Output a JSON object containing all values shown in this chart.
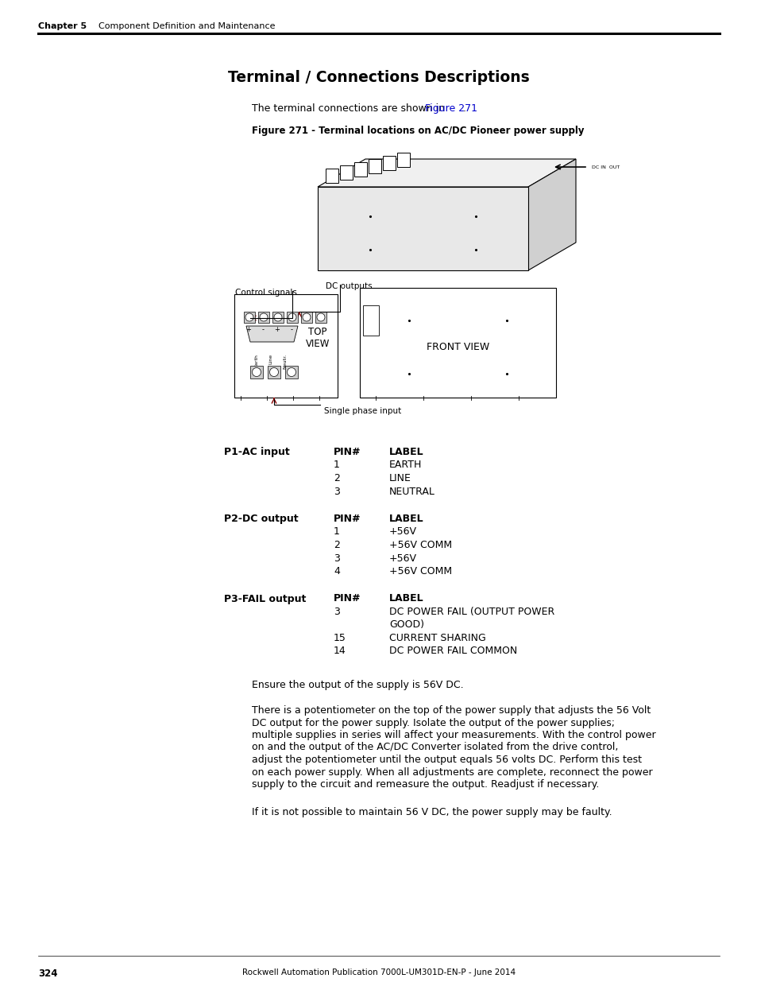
{
  "page_header_chapter": "Chapter 5",
  "page_header_title": "    Component Definition and Maintenance",
  "main_title": "Terminal / Connections Descriptions",
  "intro_link": "Figure 271",
  "figure_caption": "Figure 271 - Terminal locations on AC/DC Pioneer power supply",
  "label_control_signals": "Control signals",
  "label_dc_outputs": "DC outputs",
  "label_top_view": "TOP\nVIEW",
  "label_front_view": "FRONT VIEW",
  "label_single_phase": "Single phase input",
  "sections": [
    {
      "connector": "P1-AC input",
      "pin_label_header": "PIN#",
      "label_header": "LABEL",
      "rows": [
        {
          "pin": "1",
          "label": "EARTH",
          "cont": false
        },
        {
          "pin": "2",
          "label": "LINE",
          "cont": false
        },
        {
          "pin": "3",
          "label": "NEUTRAL",
          "cont": false
        }
      ]
    },
    {
      "connector": "P2-DC output",
      "pin_label_header": "PIN#",
      "label_header": "LABEL",
      "rows": [
        {
          "pin": "1",
          "label": "+56V",
          "cont": false
        },
        {
          "pin": "2",
          "label": "+56V COMM",
          "cont": false
        },
        {
          "pin": "3",
          "label": "+56V",
          "cont": false
        },
        {
          "pin": "4",
          "label": "+56V COMM",
          "cont": false
        }
      ]
    },
    {
      "connector": "P3-FAIL output",
      "pin_label_header": "PIN#",
      "label_header": "LABEL",
      "rows": [
        {
          "pin": "3",
          "label": "DC POWER FAIL (OUTPUT POWER",
          "cont": false
        },
        {
          "pin": "",
          "label": "GOOD)",
          "cont": true
        },
        {
          "pin": "15",
          "label": "CURRENT SHARING",
          "cont": false
        },
        {
          "pin": "14",
          "label": "DC POWER FAIL COMMON",
          "cont": false
        }
      ]
    }
  ],
  "para1": "Ensure the output of the supply is 56V DC.",
  "para2_lines": [
    "There is a potentiometer on the top of the power supply that adjusts the 56 Volt",
    "DC output for the power supply. Isolate the output of the power supplies;",
    "multiple supplies in series will affect your measurements. With the control power",
    "on and the output of the AC/DC Converter isolated from the drive control,",
    "adjust the potentiometer until the output equals 56 volts DC. Perform this test",
    "on each power supply. When all adjustments are complete, reconnect the power",
    "supply to the circuit and remeasure the output. Readjust if necessary."
  ],
  "para3": "If it is not possible to maintain 56 V DC, the power supply may be faulty.",
  "page_number": "324",
  "footer_text": "Rockwell Automation Publication 7000L-UM301D-EN-P - June 2014",
  "bg_color": "#ffffff",
  "text_color": "#000000",
  "link_color": "#0000cc"
}
